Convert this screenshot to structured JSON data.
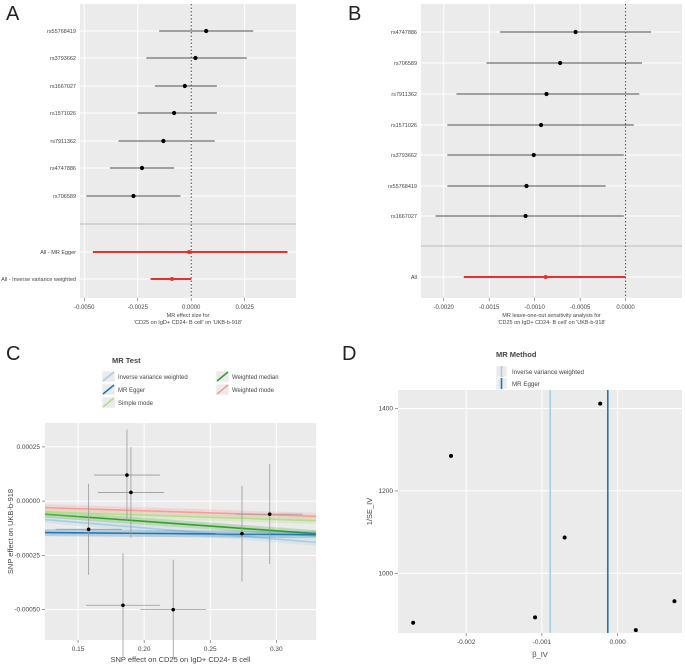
{
  "chart_data": [
    {
      "panel": "A",
      "type": "forest",
      "xlabel": "MR effect size for\n'CD25 on IgD+ CD24- B cell' on 'UKB-b-918'",
      "xlim": [
        -0.0052,
        0.0049
      ],
      "xticks": [
        -0.005,
        -0.0025,
        0.0,
        0.0025
      ],
      "xtick_labels": [
        "-0.0050",
        "-0.0025",
        "0.0000",
        "0.0025"
      ],
      "snps": [
        {
          "name": "rs55768419",
          "est": 0.0007,
          "lo": -0.0015,
          "hi": 0.0029
        },
        {
          "name": "rs3793662",
          "est": 0.0002,
          "lo": -0.0021,
          "hi": 0.0026
        },
        {
          "name": "rs1667027",
          "est": -0.0003,
          "lo": -0.0017,
          "hi": 0.0012
        },
        {
          "name": "rs1571026",
          "est": -0.0008,
          "lo": -0.0025,
          "hi": 0.0012
        },
        {
          "name": "rs7911362",
          "est": -0.0013,
          "lo": -0.0034,
          "hi": 0.0011
        },
        {
          "name": "rs4747886",
          "est": -0.0023,
          "lo": -0.0038,
          "hi": -0.0008
        },
        {
          "name": "rs706589",
          "est": -0.0027,
          "lo": -0.0049,
          "hi": -0.0005
        }
      ],
      "summary": [
        {
          "name": "All - MR Egger",
          "est": -0.0001,
          "lo": -0.0046,
          "hi": 0.0045
        },
        {
          "name": "All - Inverse variance weighted",
          "est": -0.0009,
          "lo": -0.0019,
          "hi": 0.0
        }
      ]
    },
    {
      "panel": "B",
      "type": "forest",
      "xlabel": "MR leave-one-out sensitivity analysis for\n'CD25 on IgD+ CD24- B cell' on 'UKB-b-918'",
      "xlim": [
        -0.00225,
        0.00062
      ],
      "xticks": [
        -0.002,
        -0.0015,
        -0.001,
        -0.0005,
        0.0
      ],
      "xtick_labels": [
        "-0.0020",
        "-0.0015",
        "-0.0010",
        "-0.0005",
        "0.0000"
      ],
      "snps": [
        {
          "name": "rs4747886",
          "est": -0.00055,
          "lo": -0.00138,
          "hi": 0.00028
        },
        {
          "name": "rs706589",
          "est": -0.00072,
          "lo": -0.00153,
          "hi": 0.00018
        },
        {
          "name": "rs7911362",
          "est": -0.00087,
          "lo": -0.00186,
          "hi": 0.00015
        },
        {
          "name": "rs1571026",
          "est": -0.00093,
          "lo": -0.00196,
          "hi": 9e-05
        },
        {
          "name": "rs3793662",
          "est": -0.00101,
          "lo": -0.00196,
          "hi": -2e-05
        },
        {
          "name": "rs55768419",
          "est": -0.00109,
          "lo": -0.00196,
          "hi": -0.00022
        },
        {
          "name": "rs1667027",
          "est": -0.0011,
          "lo": -0.00209,
          "hi": -2e-05
        }
      ],
      "summary": [
        {
          "name": "All",
          "est": -0.00088,
          "lo": -0.00178,
          "hi": 0.0
        }
      ]
    },
    {
      "panel": "C",
      "type": "scatter",
      "legend_title": "MR Test",
      "legend": [
        {
          "name": "Inverse variance weighted",
          "color": "#a6cee3"
        },
        {
          "name": "Weighted median",
          "color": "#33a02c"
        },
        {
          "name": "MR Egger",
          "color": "#1f78b4"
        },
        {
          "name": "Weighted mode",
          "color": "#fb9a99"
        },
        {
          "name": "Simple mode",
          "color": "#b2df8a"
        }
      ],
      "xlabel": "SNP effect on CD25 on IgD+ CD24- B cell",
      "ylabel": "SNP effect on UKB-b-918",
      "xlim": [
        0.125,
        0.33
      ],
      "ylim": [
        -0.00064,
        0.00036
      ],
      "xticks": [
        0.15,
        0.2,
        0.25,
        0.3
      ],
      "xtick_labels": [
        "0.15",
        "0.20",
        "0.25",
        "0.30"
      ],
      "yticks": [
        -0.0005,
        -0.00025,
        0.0,
        0.00025
      ],
      "ytick_labels": [
        "-0.00050",
        "-0.00025",
        "0.00000",
        "0.00025"
      ],
      "points": [
        {
          "x": 0.187,
          "y": 0.00012,
          "xerr": 0.025,
          "yerr": 0.00021
        },
        {
          "x": 0.19,
          "y": 4e-05,
          "xerr": 0.025,
          "yerr": 0.00021
        },
        {
          "x": 0.158,
          "y": -0.00013,
          "xerr": 0.025,
          "yerr": 0.00021
        },
        {
          "x": 0.184,
          "y": -0.00048,
          "xerr": 0.028,
          "yerr": 0.00024
        },
        {
          "x": 0.222,
          "y": -0.0005,
          "xerr": 0.025,
          "yerr": 0.00023
        },
        {
          "x": 0.274,
          "y": -0.00015,
          "xerr": 0.02,
          "yerr": 0.00022
        },
        {
          "x": 0.295,
          "y": -6e-05,
          "xerr": 0.025,
          "yerr": 0.00023
        }
      ],
      "lines": [
        {
          "name": "Inverse variance weighted",
          "x0": 0.125,
          "y0": -8.5e-05,
          "x1": 0.33,
          "y1": -0.00019
        },
        {
          "name": "Weighted median",
          "x0": 0.125,
          "y0": -6e-05,
          "x1": 0.33,
          "y1": -0.00015
        },
        {
          "name": "MR Egger",
          "x0": 0.125,
          "y0": -0.000145,
          "x1": 0.33,
          "y1": -0.000155
        },
        {
          "name": "Weighted mode",
          "x0": 0.125,
          "y0": -3e-05,
          "x1": 0.33,
          "y1": -7e-05
        },
        {
          "name": "Simple mode",
          "x0": 0.125,
          "y0": -5e-05,
          "x1": 0.33,
          "y1": -9e-05
        }
      ]
    },
    {
      "panel": "D",
      "type": "funnel",
      "legend_title": "MR Method",
      "legend": [
        {
          "name": "Inverse variance weighted",
          "color": "#a6cee3"
        },
        {
          "name": "MR Egger",
          "color": "#1f78b4"
        }
      ],
      "xlabel": "β_IV",
      "ylabel": "1/SE_IV",
      "xlim": [
        -0.0029,
        0.00085
      ],
      "ylim": [
        855,
        1445
      ],
      "xticks": [
        -0.002,
        -0.001,
        0.0
      ],
      "xtick_labels": [
        "-0.002",
        "-0.001",
        "0.000"
      ],
      "yticks": [
        1000,
        1200,
        1400
      ],
      "ytick_labels": [
        "1000",
        "1200",
        "1400"
      ],
      "vlines": [
        {
          "name": "Inverse variance weighted",
          "x": -0.00089
        },
        {
          "name": "MR Egger",
          "x": -0.00013
        }
      ],
      "points": [
        {
          "x": -0.0027,
          "y": 880
        },
        {
          "x": -0.0022,
          "y": 1285
        },
        {
          "x": -0.00109,
          "y": 893
        },
        {
          "x": -0.0007,
          "y": 1087
        },
        {
          "x": -0.00023,
          "y": 1412
        },
        {
          "x": 0.00024,
          "y": 862
        },
        {
          "x": 0.00075,
          "y": 932
        }
      ]
    }
  ],
  "panels": {
    "a": {
      "letter": "A"
    },
    "b": {
      "letter": "B"
    },
    "c": {
      "letter": "C"
    },
    "d": {
      "letter": "D"
    }
  }
}
